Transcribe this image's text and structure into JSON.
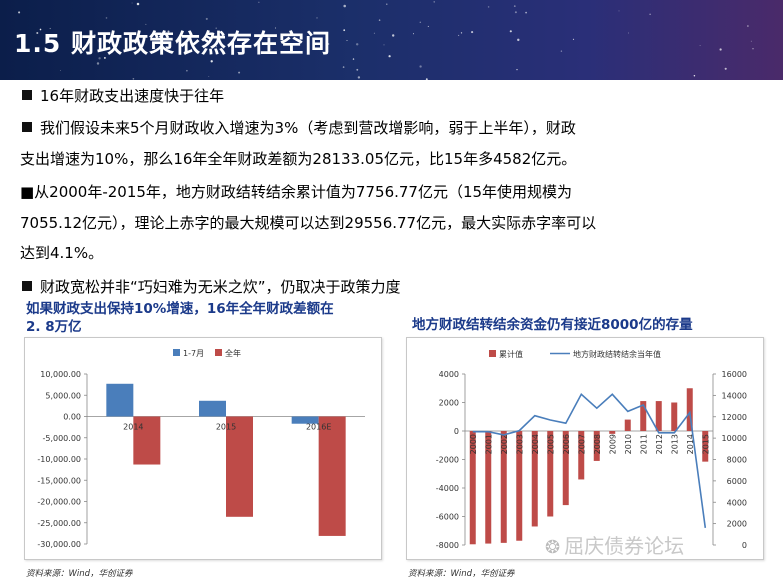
{
  "header": {
    "title": "1.5 财政政策依然存在空间"
  },
  "bullets": [
    {
      "lines": [
        "16年财政支出速度快于往年"
      ]
    },
    {
      "lines": [
        "我们假设未来5个月财政收入增速为3%（考虑到营改增影响，弱于上半年），财政",
        "支出增速为10%，那么16年全年财政差额为28133.05亿元，比15年多4582亿元。"
      ]
    },
    {
      "lines": [
        "■从2000年-2015年，地方财政结转结余累计值为7756.77亿元（15年使用规模为",
        "7055.12亿元），理论上赤字的最大规模可以达到29556.77亿元，最大实际赤字率可以",
        "达到4.1%。"
      ]
    },
    {
      "lines": [
        "财政宽松并非“巧妇难为无米之炊”，仍取决于政策力度"
      ]
    }
  ],
  "chart_data": [
    {
      "type": "bar",
      "title_lines": [
        "如果财政支出保持10%增速，16年全年财政差额在",
        "2. 8万亿"
      ],
      "categories": [
        "2014",
        "2015",
        "2016E"
      ],
      "series": [
        {
          "name": "1-7月",
          "values": [
            7700,
            3700,
            -1700
          ],
          "color": "#4a7ebb"
        },
        {
          "name": "全年",
          "values": [
            -11300,
            -23600,
            -28100
          ],
          "color": "#be4b48"
        }
      ],
      "ylim": [
        -30000,
        10000
      ],
      "yticks": [
        "-30,000.00",
        "-25,000.00",
        "-20,000.00",
        "-15,000.00",
        "-10,000.00",
        "-5,000.00",
        "0.00",
        "5,000.00",
        "10,000.00"
      ],
      "ytick_values": [
        -30000,
        -25000,
        -20000,
        -15000,
        -10000,
        -5000,
        0,
        5000,
        10000
      ],
      "legend": "top",
      "source": "资料来源：Wind，华创证券"
    },
    {
      "type": "bar-line",
      "title": "地方财政结转结余资金仍有接近8000亿的存量",
      "categories": [
        "2000",
        "2001",
        "2002",
        "2003",
        "2004",
        "2005",
        "2006",
        "2007",
        "2008",
        "2009",
        "2010",
        "2011",
        "2012",
        "2013",
        "2014",
        "2015"
      ],
      "series": [
        {
          "name": "累计值",
          "type": "bar",
          "axis": "left",
          "color": "#be4b48",
          "values": [
            -7950,
            -7900,
            -7850,
            -7700,
            -6700,
            -6000,
            -5200,
            -3400,
            -2100,
            -200,
            800,
            2100,
            2100,
            2000,
            3000,
            -2150
          ]
        },
        {
          "name": "地方财政结转结余当年值",
          "type": "line",
          "axis": "right",
          "color": "#4a7ebb",
          "values": [
            10600,
            10600,
            10300,
            10700,
            12100,
            11700,
            11400,
            14100,
            12800,
            14100,
            12500,
            13100,
            10500,
            10500,
            12400,
            1600
          ]
        }
      ],
      "ylim_left": [
        -8000,
        4000
      ],
      "yticks_left": [
        "-8000",
        "-6000",
        "-4000",
        "-2000",
        "0",
        "2000",
        "4000"
      ],
      "ytick_values_left": [
        -8000,
        -6000,
        -4000,
        -2000,
        0,
        2000,
        4000
      ],
      "ylim_right": [
        0,
        16000
      ],
      "yticks_right": [
        "0",
        "2000",
        "4000",
        "6000",
        "8000",
        "10000",
        "12000",
        "14000",
        "16000"
      ],
      "ytick_values_right": [
        0,
        2000,
        4000,
        6000,
        8000,
        10000,
        12000,
        14000,
        16000
      ],
      "legend": "top",
      "source": "资料来源：Wind，华创证券"
    }
  ],
  "watermark": {
    "text": "屈庆债券论坛",
    "icon": "wechat-icon"
  }
}
